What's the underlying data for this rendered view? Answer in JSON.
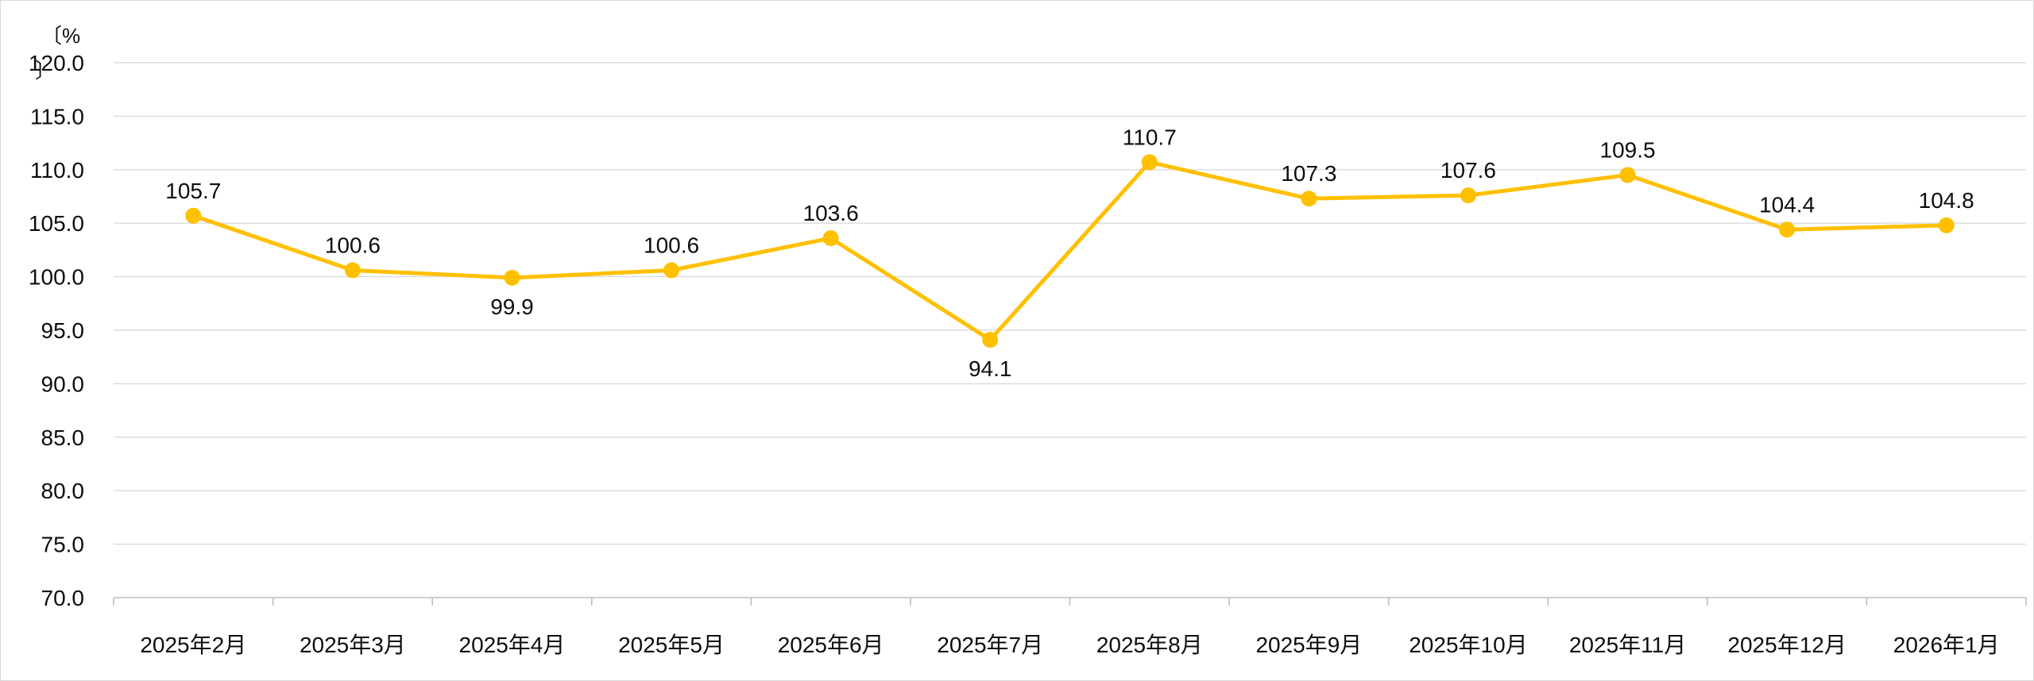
{
  "chart_data": {
    "type": "line",
    "title": "",
    "ylabel": "〔%〕",
    "ylabel_line1": "〔%",
    "ylabel_line2": "〕",
    "xlabel": "",
    "categories": [
      "2025年2月",
      "2025年3月",
      "2025年4月",
      "2025年5月",
      "2025年6月",
      "2025年7月",
      "2025年8月",
      "2025年9月",
      "2025年10月",
      "2025年11月",
      "2025年12月",
      "2026年1月"
    ],
    "series": [
      {
        "name": "",
        "values": [
          105.7,
          100.6,
          99.9,
          100.6,
          103.6,
          94.1,
          110.7,
          107.3,
          107.6,
          109.5,
          104.4,
          104.8
        ],
        "color": "#FFC000"
      }
    ],
    "data_labels": [
      "105.7",
      "100.6",
      "99.9",
      "100.6",
      "103.6",
      "94.1",
      "110.7",
      "107.3",
      "107.6",
      "109.5",
      "104.4",
      "104.8"
    ],
    "labels_below_indices": [
      2,
      5
    ],
    "ylim": [
      70.0,
      120.0
    ],
    "ytick_step": 5.0,
    "ytick_labels": [
      "120.0",
      "115.0",
      "110.0",
      "105.0",
      "100.0",
      "95.0",
      "90.0",
      "85.0",
      "80.0",
      "75.0",
      "70.0"
    ],
    "grid": true,
    "legend_position": "none",
    "colors": {
      "line": "#FFC000",
      "marker": "#FFC000",
      "gridline": "#DBDBDB",
      "axis_line": "#BFBFBF",
      "tick_mark": "#BFBFBF",
      "label_text": "#0d0d0d",
      "tick_text": "#0d0d0d",
      "frame_border": "#D9D9D9"
    }
  }
}
